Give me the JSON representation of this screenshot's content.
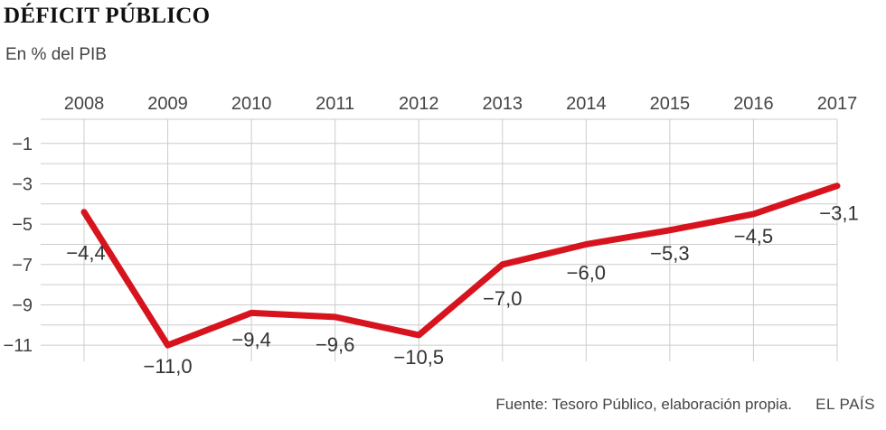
{
  "header": {
    "title": "DÉFICIT PÚBLICO",
    "subtitle": "En % del PIB"
  },
  "footer": {
    "source": "Fuente: Tesoro Público, elaboración propia.",
    "brand": "EL PAÍS"
  },
  "colors": {
    "line": "#d7141e",
    "grid": "#cccccc",
    "text": "#444444"
  },
  "chart_data": {
    "type": "line",
    "title": "DÉFICIT PÚBLICO",
    "subtitle": "En % del PIB",
    "xlabel": "",
    "ylabel": "",
    "x": [
      "2008",
      "2009",
      "2010",
      "2011",
      "2012",
      "2013",
      "2014",
      "2015",
      "2016",
      "2017"
    ],
    "y": [
      -4.4,
      -11.0,
      -9.4,
      -9.6,
      -10.5,
      -7.0,
      -6.0,
      -5.3,
      -4.5,
      -3.1
    ],
    "point_labels": [
      "−4,4",
      "−11,0",
      "−9,4",
      "−9,6",
      "−10,5",
      "−7,0",
      "−6,0",
      "−5,3",
      "−4,5",
      "−3,1"
    ],
    "yticks": [
      -1,
      -3,
      -5,
      -7,
      -9,
      -11
    ],
    "ytick_labels": [
      "−1",
      "−3",
      "−5",
      "−7",
      "−9",
      "−11"
    ],
    "ylim": [
      -11.8,
      0.2
    ],
    "x_axis_position": "top",
    "grid": true,
    "legend": "none"
  }
}
